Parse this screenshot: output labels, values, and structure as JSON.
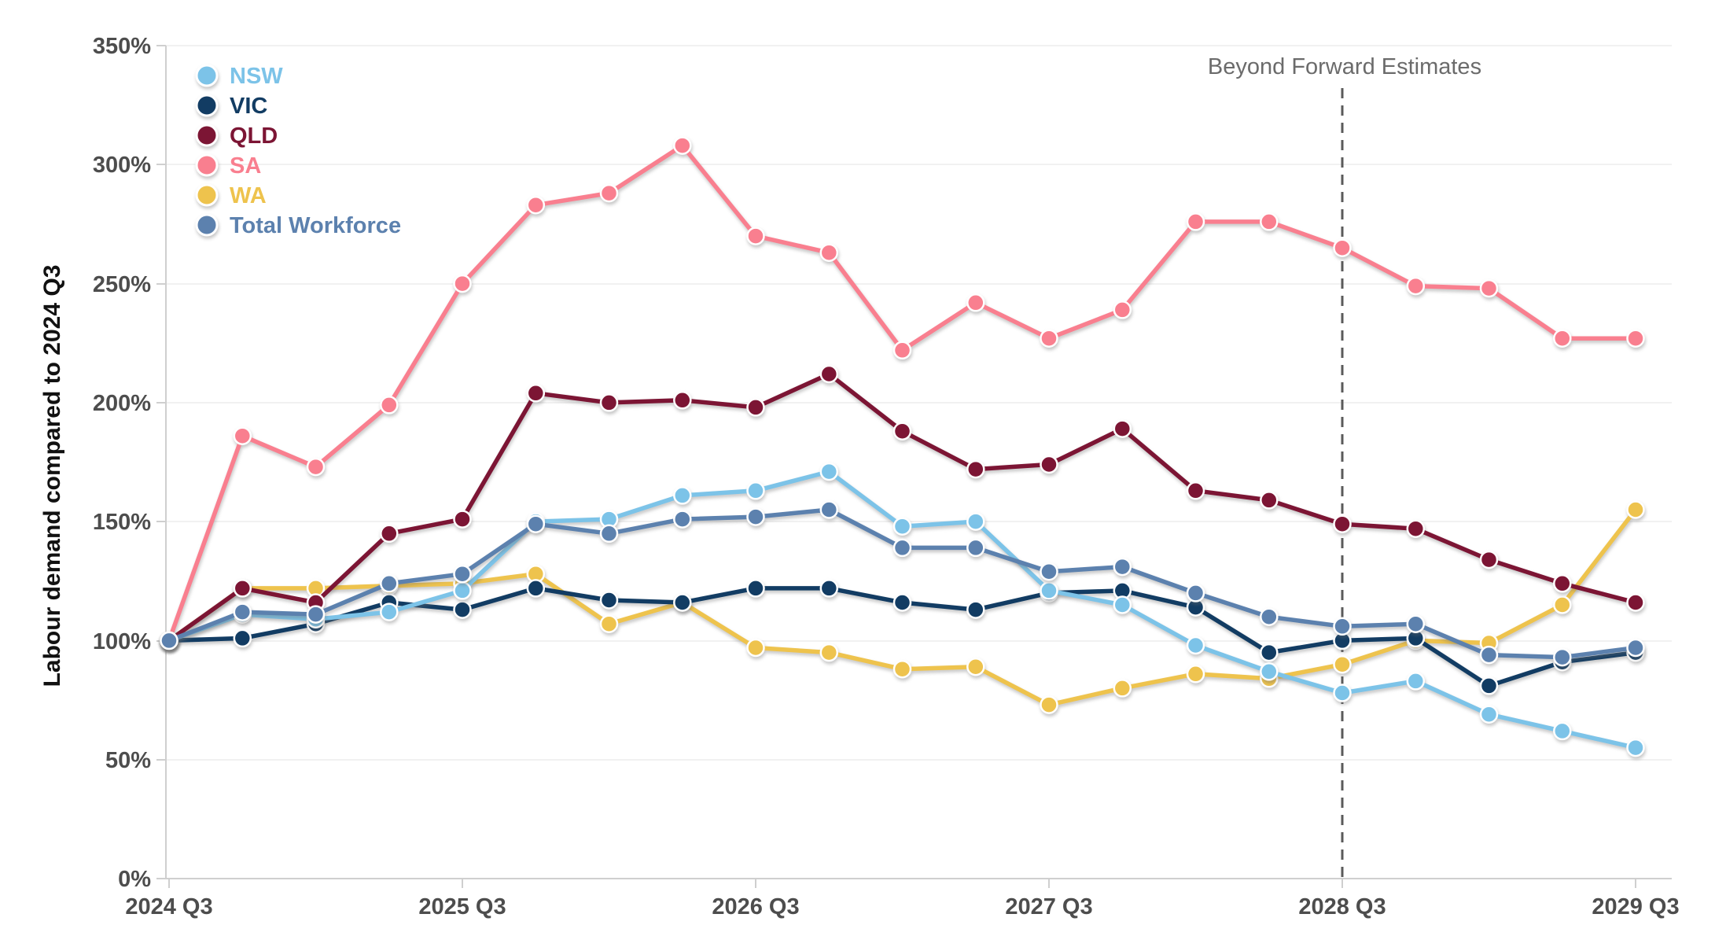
{
  "chart_data": {
    "type": "line",
    "title": "",
    "ylabel": "Labour demand compared to 2024 Q3",
    "ylim": [
      0,
      350
    ],
    "y_tick_step": 50,
    "grid": true,
    "legend_position": "top-left",
    "y_tick_labels": [
      "350%",
      "300%",
      "250%",
      "200%",
      "150%",
      "100%",
      "50%",
      "0%"
    ],
    "x_axis_tick_labels": [
      "2024 Q3",
      "2025 Q3",
      "2026 Q3",
      "2027 Q3",
      "2028 Q3",
      "2029 Q3"
    ],
    "x": [
      "2024 Q3",
      "2024 Q4",
      "2025 Q1",
      "2025 Q2",
      "2025 Q3",
      "2025 Q4",
      "2026 Q1",
      "2026 Q2",
      "2026 Q3",
      "2026 Q4",
      "2027 Q1",
      "2027 Q2",
      "2027 Q3",
      "2027 Q4",
      "2028 Q1",
      "2028 Q2",
      "2028 Q3",
      "2028 Q4",
      "2029 Q1",
      "2029 Q2",
      "2029 Q3"
    ],
    "annotation": {
      "label": "Beyond Forward Estimates",
      "x": "2028 Q3"
    },
    "series": [
      {
        "name": "NSW",
        "color": "#7cc3e8",
        "values": [
          100,
          111,
          109,
          112,
          121,
          150,
          151,
          161,
          163,
          171,
          148,
          150,
          121,
          115,
          98,
          87,
          78,
          83,
          69,
          62,
          55
        ]
      },
      {
        "name": "VIC",
        "color": "#123c63",
        "values": [
          100,
          101,
          107,
          116,
          113,
          122,
          117,
          116,
          122,
          122,
          116,
          113,
          120,
          121,
          114,
          95,
          100,
          101,
          81,
          91,
          95
        ]
      },
      {
        "name": "QLD",
        "color": "#7c1534",
        "values": [
          100,
          122,
          116,
          145,
          151,
          204,
          200,
          201,
          198,
          212,
          188,
          172,
          174,
          189,
          163,
          159,
          149,
          147,
          134,
          124,
          116
        ]
      },
      {
        "name": "SA",
        "color": "#f97f8f",
        "values": [
          100,
          186,
          173,
          199,
          250,
          283,
          288,
          308,
          270,
          263,
          222,
          242,
          227,
          239,
          276,
          276,
          265,
          249,
          248,
          227,
          227
        ]
      },
      {
        "name": "WA",
        "color": "#eec34d",
        "values": [
          100,
          122,
          122,
          123,
          124,
          128,
          107,
          116,
          97,
          95,
          88,
          89,
          73,
          80,
          86,
          84,
          90,
          100,
          99,
          115,
          155
        ]
      },
      {
        "name": "Total Workforce",
        "color": "#5c81ae",
        "values": [
          100,
          112,
          111,
          124,
          128,
          149,
          145,
          151,
          152,
          155,
          139,
          139,
          129,
          131,
          120,
          110,
          106,
          107,
          94,
          93,
          97
        ]
      }
    ]
  }
}
